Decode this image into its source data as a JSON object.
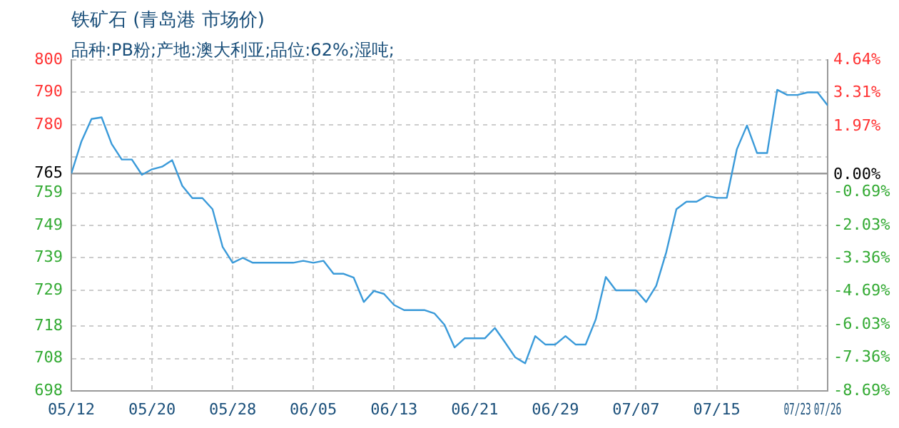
{
  "chart_data": {
    "type": "line",
    "title": "铁矿石 (青岛港 市场价)",
    "subtitle": "品种:PB粉;产地:澳大利亚;品位:62%;湿吨;",
    "x": [
      "--05-12",
      "--05-13",
      "--05-14",
      "--05-15",
      "--05-16",
      "--05-17",
      "--05-18",
      "--05-19",
      "--05-20",
      "--05-21",
      "--05-22",
      "--05-23",
      "--05-24",
      "--05-25",
      "--05-26",
      "--05-27",
      "--05-28",
      "--05-29",
      "--05-30",
      "--05-31",
      "--06-01",
      "--06-02",
      "--06-03",
      "--06-04",
      "--06-05",
      "--06-06",
      "--06-07",
      "--06-08",
      "--06-09",
      "--06-10",
      "--06-11",
      "--06-12",
      "--06-13",
      "--06-14",
      "--06-15",
      "--06-16",
      "--06-17",
      "--06-18",
      "--06-19",
      "--06-20",
      "--06-21",
      "--06-22",
      "--06-23",
      "--06-24",
      "--06-25",
      "--06-26",
      "--06-27",
      "--06-28",
      "--06-29",
      "--06-30",
      "--07-01",
      "--07-02",
      "--07-03",
      "--07-04",
      "--07-05",
      "--07-06",
      "--07-07",
      "--07-08",
      "--07-09",
      "--07-10",
      "--07-11",
      "--07-12",
      "--07-13",
      "--07-14",
      "--07-15",
      "--07-16",
      "--07-17",
      "--07-18",
      "--07-19",
      "--07-20",
      "--07-21",
      "--07-22",
      "--07-23",
      "--07-24",
      "--07-25",
      "--07-26"
    ],
    "series": [
      {
        "color": "#3a9ad9",
        "values": [
          765,
          774.9,
          781.8,
          782.3,
          774.1,
          769.3,
          769.3,
          764.6,
          766.3,
          767.1,
          769.1,
          761.2,
          757.4,
          757.4,
          754,
          742.4,
          737.5,
          739,
          737.5,
          737.5,
          737.5,
          737.5,
          737.5,
          738.1,
          737.5,
          738.1,
          734.1,
          734.1,
          732.9,
          725.4,
          728.8,
          727.9,
          724.5,
          722.9,
          722.9,
          722.9,
          721.9,
          718.4,
          711.4,
          714.2,
          714.2,
          714.2,
          717.4,
          713,
          708.4,
          706.5,
          714.9,
          712.3,
          712.3,
          714.9,
          712.3,
          712.3,
          720,
          733.1,
          729,
          729,
          729,
          725.4,
          730.4,
          740.8,
          754,
          756.3,
          756.3,
          758.1,
          757.5,
          757.5,
          772.5,
          779.8,
          771.3,
          771.3,
          790.8,
          789.2,
          789.2,
          790,
          790,
          786
        ]
      }
    ],
    "xlim": [
      "--05-12",
      "--07-26"
    ],
    "xticks": [
      {
        "value": "--05-12",
        "label": "05/12"
      },
      {
        "value": "--05-20",
        "label": "05/20"
      },
      {
        "value": "--05-28",
        "label": "05/28"
      },
      {
        "value": "--06-05",
        "label": "06/05"
      },
      {
        "value": "--06-13",
        "label": "06/13"
      },
      {
        "value": "--06-21",
        "label": "06/21"
      },
      {
        "value": "--06-29",
        "label": "06/29"
      },
      {
        "value": "--07-07",
        "label": "07/07"
      },
      {
        "value": "--07-15",
        "label": "07/15"
      },
      {
        "value": "--07-23",
        "label": "07/23"
      },
      {
        "value": "--07-26",
        "label": "07/26"
      }
    ],
    "ylim": [
      698,
      800
    ],
    "yticks": [
      698,
      708,
      718,
      729,
      739,
      749,
      759,
      765,
      {
        "value": 770,
        "label": null
      },
      780,
      790,
      800
    ],
    "y2lim": [
      -8.69,
      4.64
    ],
    "y2ticks": [
      {
        "value": -8.69,
        "label": "-8.69%"
      },
      {
        "value": -7.36,
        "label": "-7.36%"
      },
      {
        "value": -6.03,
        "label": "-6.03%"
      },
      {
        "value": -4.69,
        "label": "-4.69%"
      },
      {
        "value": -3.36,
        "label": "-3.36%"
      },
      {
        "value": -2.03,
        "label": "-2.03%"
      },
      {
        "value": -0.69,
        "label": "-0.69%"
      },
      {
        "value": 0,
        "label": "0.00%"
      },
      {
        "value": 1.97,
        "label": "1.97%"
      },
      {
        "value": 3.31,
        "label": "3.31%"
      },
      {
        "value": 4.64,
        "label": "4.64%"
      }
    ],
    "ref_lines": [
      {
        "axis": "y",
        "value": 765,
        "color": "#999999"
      }
    ],
    "grid": true,
    "legend": false,
    "marker": "none",
    "line_style": "solid"
  }
}
